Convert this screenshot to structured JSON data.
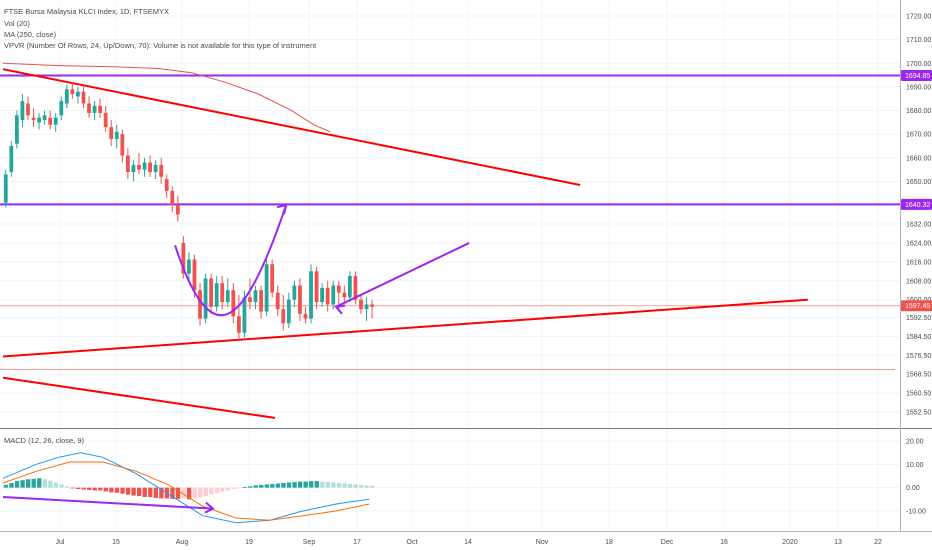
{
  "legend": {
    "title": "FTSE Bursa Malaysia KLCI Index, 1D, FTSEMYX",
    "vol": "Vol (20)",
    "ma": "MA (250, close)",
    "vpvr": "VPVR (Number Of Rows, 24, Up/Down, 70): Volume is not available for this type of instrument",
    "macd": "MACD (12, 26, close, 9)"
  },
  "colors": {
    "up": "#26a69a",
    "down": "#ef5350",
    "trendline": "#ff0000",
    "hline": "#9c27f0",
    "ma": "#e55353",
    "macd_line": "#2196f3",
    "signal_line": "#ff6d00",
    "price_badge": "#ef5350",
    "level_badge": "#9c27f0"
  },
  "chart_data": [
    {
      "type": "candlestick",
      "x_labels": [
        "Jul",
        "15",
        "Aug",
        "19",
        "Sep",
        "17",
        "Oct",
        "14",
        "Nov",
        "18",
        "Dec",
        "16",
        "2020",
        "13",
        "22"
      ],
      "price_ticks": [
        1720.0,
        1710.0,
        1700.0,
        1690.0,
        1680.0,
        1670.0,
        1660.0,
        1650.0,
        1640.0,
        1632.0,
        1624.0,
        1616.0,
        1608.0,
        1600.0,
        1592.5,
        1584.5,
        1576.5,
        1568.5,
        1560.5,
        1552.5
      ],
      "ohlc": [
        [
          1641,
          1655,
          1639,
          1653
        ],
        [
          1654,
          1667,
          1652,
          1665
        ],
        [
          1666,
          1680,
          1664,
          1678
        ],
        [
          1676,
          1687,
          1673,
          1684
        ],
        [
          1683,
          1686,
          1676,
          1678
        ],
        [
          1677,
          1681,
          1673,
          1676
        ],
        [
          1675,
          1679,
          1672,
          1677
        ],
        [
          1676,
          1680,
          1674,
          1678
        ],
        [
          1677,
          1680,
          1672,
          1674
        ],
        [
          1674,
          1679,
          1671,
          1677
        ],
        [
          1678,
          1686,
          1676,
          1684
        ],
        [
          1683,
          1691,
          1681,
          1689
        ],
        [
          1689,
          1692,
          1685,
          1687
        ],
        [
          1686,
          1690,
          1683,
          1688
        ],
        [
          1688,
          1690,
          1681,
          1683
        ],
        [
          1683,
          1686,
          1677,
          1679
        ],
        [
          1679,
          1684,
          1676,
          1682
        ],
        [
          1682,
          1685,
          1677,
          1679
        ],
        [
          1679,
          1682,
          1671,
          1673
        ],
        [
          1673,
          1676,
          1665,
          1668
        ],
        [
          1668,
          1674,
          1664,
          1671
        ],
        [
          1670,
          1672,
          1658,
          1661
        ],
        [
          1661,
          1664,
          1651,
          1654
        ],
        [
          1654,
          1659,
          1650,
          1657
        ],
        [
          1657,
          1662,
          1653,
          1655
        ],
        [
          1655,
          1660,
          1652,
          1658
        ],
        [
          1658,
          1661,
          1652,
          1654
        ],
        [
          1654,
          1659,
          1651,
          1657
        ],
        [
          1657,
          1660,
          1649,
          1652
        ],
        [
          1651,
          1653,
          1643,
          1646
        ],
        [
          1646,
          1648,
          1637,
          1640
        ],
        [
          1640,
          1644,
          1633,
          1636
        ],
        [
          1624,
          1627,
          1609,
          1611
        ],
        [
          1611,
          1620,
          1608,
          1617
        ],
        [
          1617,
          1619,
          1601,
          1604
        ],
        [
          1604,
          1607,
          1589,
          1592
        ],
        [
          1592,
          1611,
          1590,
          1609
        ],
        [
          1609,
          1611,
          1594,
          1597
        ],
        [
          1597,
          1610,
          1595,
          1607
        ],
        [
          1607,
          1610,
          1596,
          1599
        ],
        [
          1599,
          1609,
          1597,
          1604
        ],
        [
          1604,
          1607,
          1590,
          1593
        ],
        [
          1593,
          1602,
          1583,
          1586
        ],
        [
          1586,
          1604,
          1584,
          1601
        ],
        [
          1601,
          1609,
          1596,
          1599
        ],
        [
          1599,
          1606,
          1596,
          1604
        ],
        [
          1604,
          1606,
          1592,
          1595
        ],
        [
          1595,
          1617,
          1593,
          1615
        ],
        [
          1615,
          1617,
          1601,
          1603
        ],
        [
          1603,
          1606,
          1593,
          1596
        ],
        [
          1596,
          1602,
          1587,
          1590
        ],
        [
          1590,
          1603,
          1588,
          1600
        ],
        [
          1600,
          1608,
          1597,
          1606
        ],
        [
          1606,
          1609,
          1591,
          1594
        ],
        [
          1594,
          1597,
          1590,
          1592
        ],
        [
          1592,
          1615,
          1590,
          1612
        ],
        [
          1612,
          1614,
          1596,
          1599
        ],
        [
          1599,
          1607,
          1597,
          1605
        ],
        [
          1605,
          1608,
          1595,
          1598
        ],
        [
          1598,
          1608,
          1596,
          1606
        ],
        [
          1606,
          1608,
          1595,
          1603
        ],
        [
          1603,
          1606,
          1598,
          1601
        ],
        [
          1601,
          1612,
          1599,
          1610
        ],
        [
          1610,
          1612,
          1598,
          1600
        ],
        [
          1600,
          1602,
          1594,
          1596
        ],
        [
          1596,
          1601,
          1591,
          1598
        ],
        [
          1598,
          1600,
          1592,
          1597
        ]
      ],
      "ma_250": [
        [
          0,
          1700
        ],
        [
          10,
          1699
        ],
        [
          20,
          1698.5
        ],
        [
          28,
          1697.8
        ],
        [
          34,
          1696
        ],
        [
          40,
          1692
        ],
        [
          46,
          1687
        ],
        [
          52,
          1680
        ],
        [
          56,
          1674
        ],
        [
          59,
          1671
        ]
      ],
      "hlines": [
        {
          "price": 1694.85,
          "label": "1694.85",
          "color": "#9c27f0"
        },
        {
          "price": 1640.32,
          "label": "1640.32",
          "color": "#9c27f0"
        },
        {
          "price": 1597.45,
          "label": "1597.45",
          "color": "#ef5350"
        },
        {
          "price": 1570.5,
          "label": "",
          "color": "#ef5350"
        }
      ],
      "trendlines": [
        {
          "from": [
            0,
            1697.5
          ],
          "to": [
            104,
            1648.5
          ]
        },
        {
          "from": [
            0,
            1576
          ],
          "to": [
            145,
            1600
          ]
        },
        {
          "from": [
            0,
            1567
          ],
          "to": [
            49,
            1550
          ]
        }
      ],
      "annotations": {
        "curve": [
          [
            31,
            1623
          ],
          [
            38,
            1590
          ],
          [
            44,
            1600
          ],
          [
            51,
            1640
          ]
        ],
        "arrow": {
          "from": [
            84,
            1624
          ],
          "to": [
            60,
            1597
          ]
        }
      }
    },
    {
      "type": "macd",
      "title": "MACD (12, 26, close, 9)",
      "y_ticks": [
        20.0,
        10.0,
        0.0,
        -10.0
      ],
      "ylim": [
        -20,
        22
      ],
      "histogram": [
        1.2,
        2.0,
        2.8,
        3.2,
        3.6,
        3.8,
        4.0,
        3.6,
        3.0,
        2.2,
        1.4,
        0.6,
        -0.2,
        -0.6,
        -0.8,
        -1.0,
        -1.2,
        -1.2,
        -1.6,
        -2.0,
        -2.2,
        -2.6,
        -3.0,
        -3.4,
        -3.6,
        -4.0,
        -4.0,
        -4.4,
        -4.6,
        -4.6,
        -4.8,
        -4.8,
        -4.6,
        -5.0,
        -4.6,
        -4.2,
        -3.6,
        -3.0,
        -2.4,
        -1.8,
        -1.2,
        -0.6,
        -0.2,
        0.2,
        0.6,
        1.0,
        1.2,
        1.4,
        1.6,
        1.8,
        2.0,
        2.2,
        2.4,
        2.6,
        2.6,
        2.8,
        2.8,
        2.6,
        2.4,
        2.2,
        2.0,
        1.8,
        1.6,
        1.4,
        1.2,
        1.0,
        0.8
      ],
      "macd_line": [
        [
          0,
          4
        ],
        [
          6,
          10
        ],
        [
          10,
          13
        ],
        [
          14,
          15
        ],
        [
          18,
          13
        ],
        [
          24,
          6
        ],
        [
          30,
          -3
        ],
        [
          36,
          -12
        ],
        [
          42,
          -15
        ],
        [
          48,
          -14
        ],
        [
          54,
          -10
        ],
        [
          60,
          -7
        ],
        [
          66,
          -5
        ]
      ],
      "signal_line": [
        [
          0,
          2
        ],
        [
          6,
          7
        ],
        [
          12,
          11
        ],
        [
          18,
          11
        ],
        [
          24,
          7
        ],
        [
          30,
          1
        ],
        [
          36,
          -8
        ],
        [
          42,
          -13
        ],
        [
          48,
          -14
        ],
        [
          54,
          -12
        ],
        [
          60,
          -10
        ],
        [
          66,
          -7
        ]
      ],
      "divergence_arrow": {
        "from": [
          0,
          -4
        ],
        "to": [
          40,
          -9
        ]
      }
    }
  ]
}
